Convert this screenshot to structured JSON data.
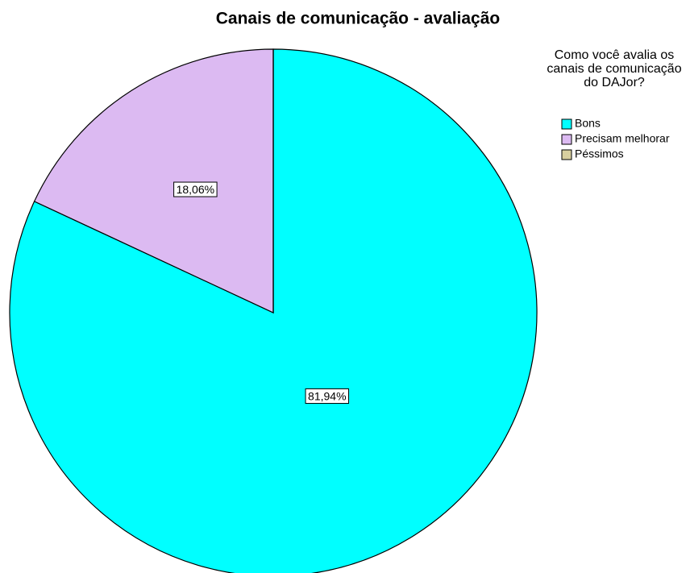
{
  "chart_data": {
    "type": "pie",
    "title": "Canais de comunicação - avaliação",
    "legend_title": "Como você avalia os canais de comunicação do DAJor?",
    "categories": [
      "Bons",
      "Precisam melhorar",
      "Péssimos"
    ],
    "values": [
      81.94,
      18.06,
      0
    ],
    "value_labels": [
      "81,94%",
      "18,06%",
      null
    ],
    "colors": [
      "#00ffff",
      "#dcbaf2",
      "#d8cf9f"
    ],
    "legend": "right"
  }
}
